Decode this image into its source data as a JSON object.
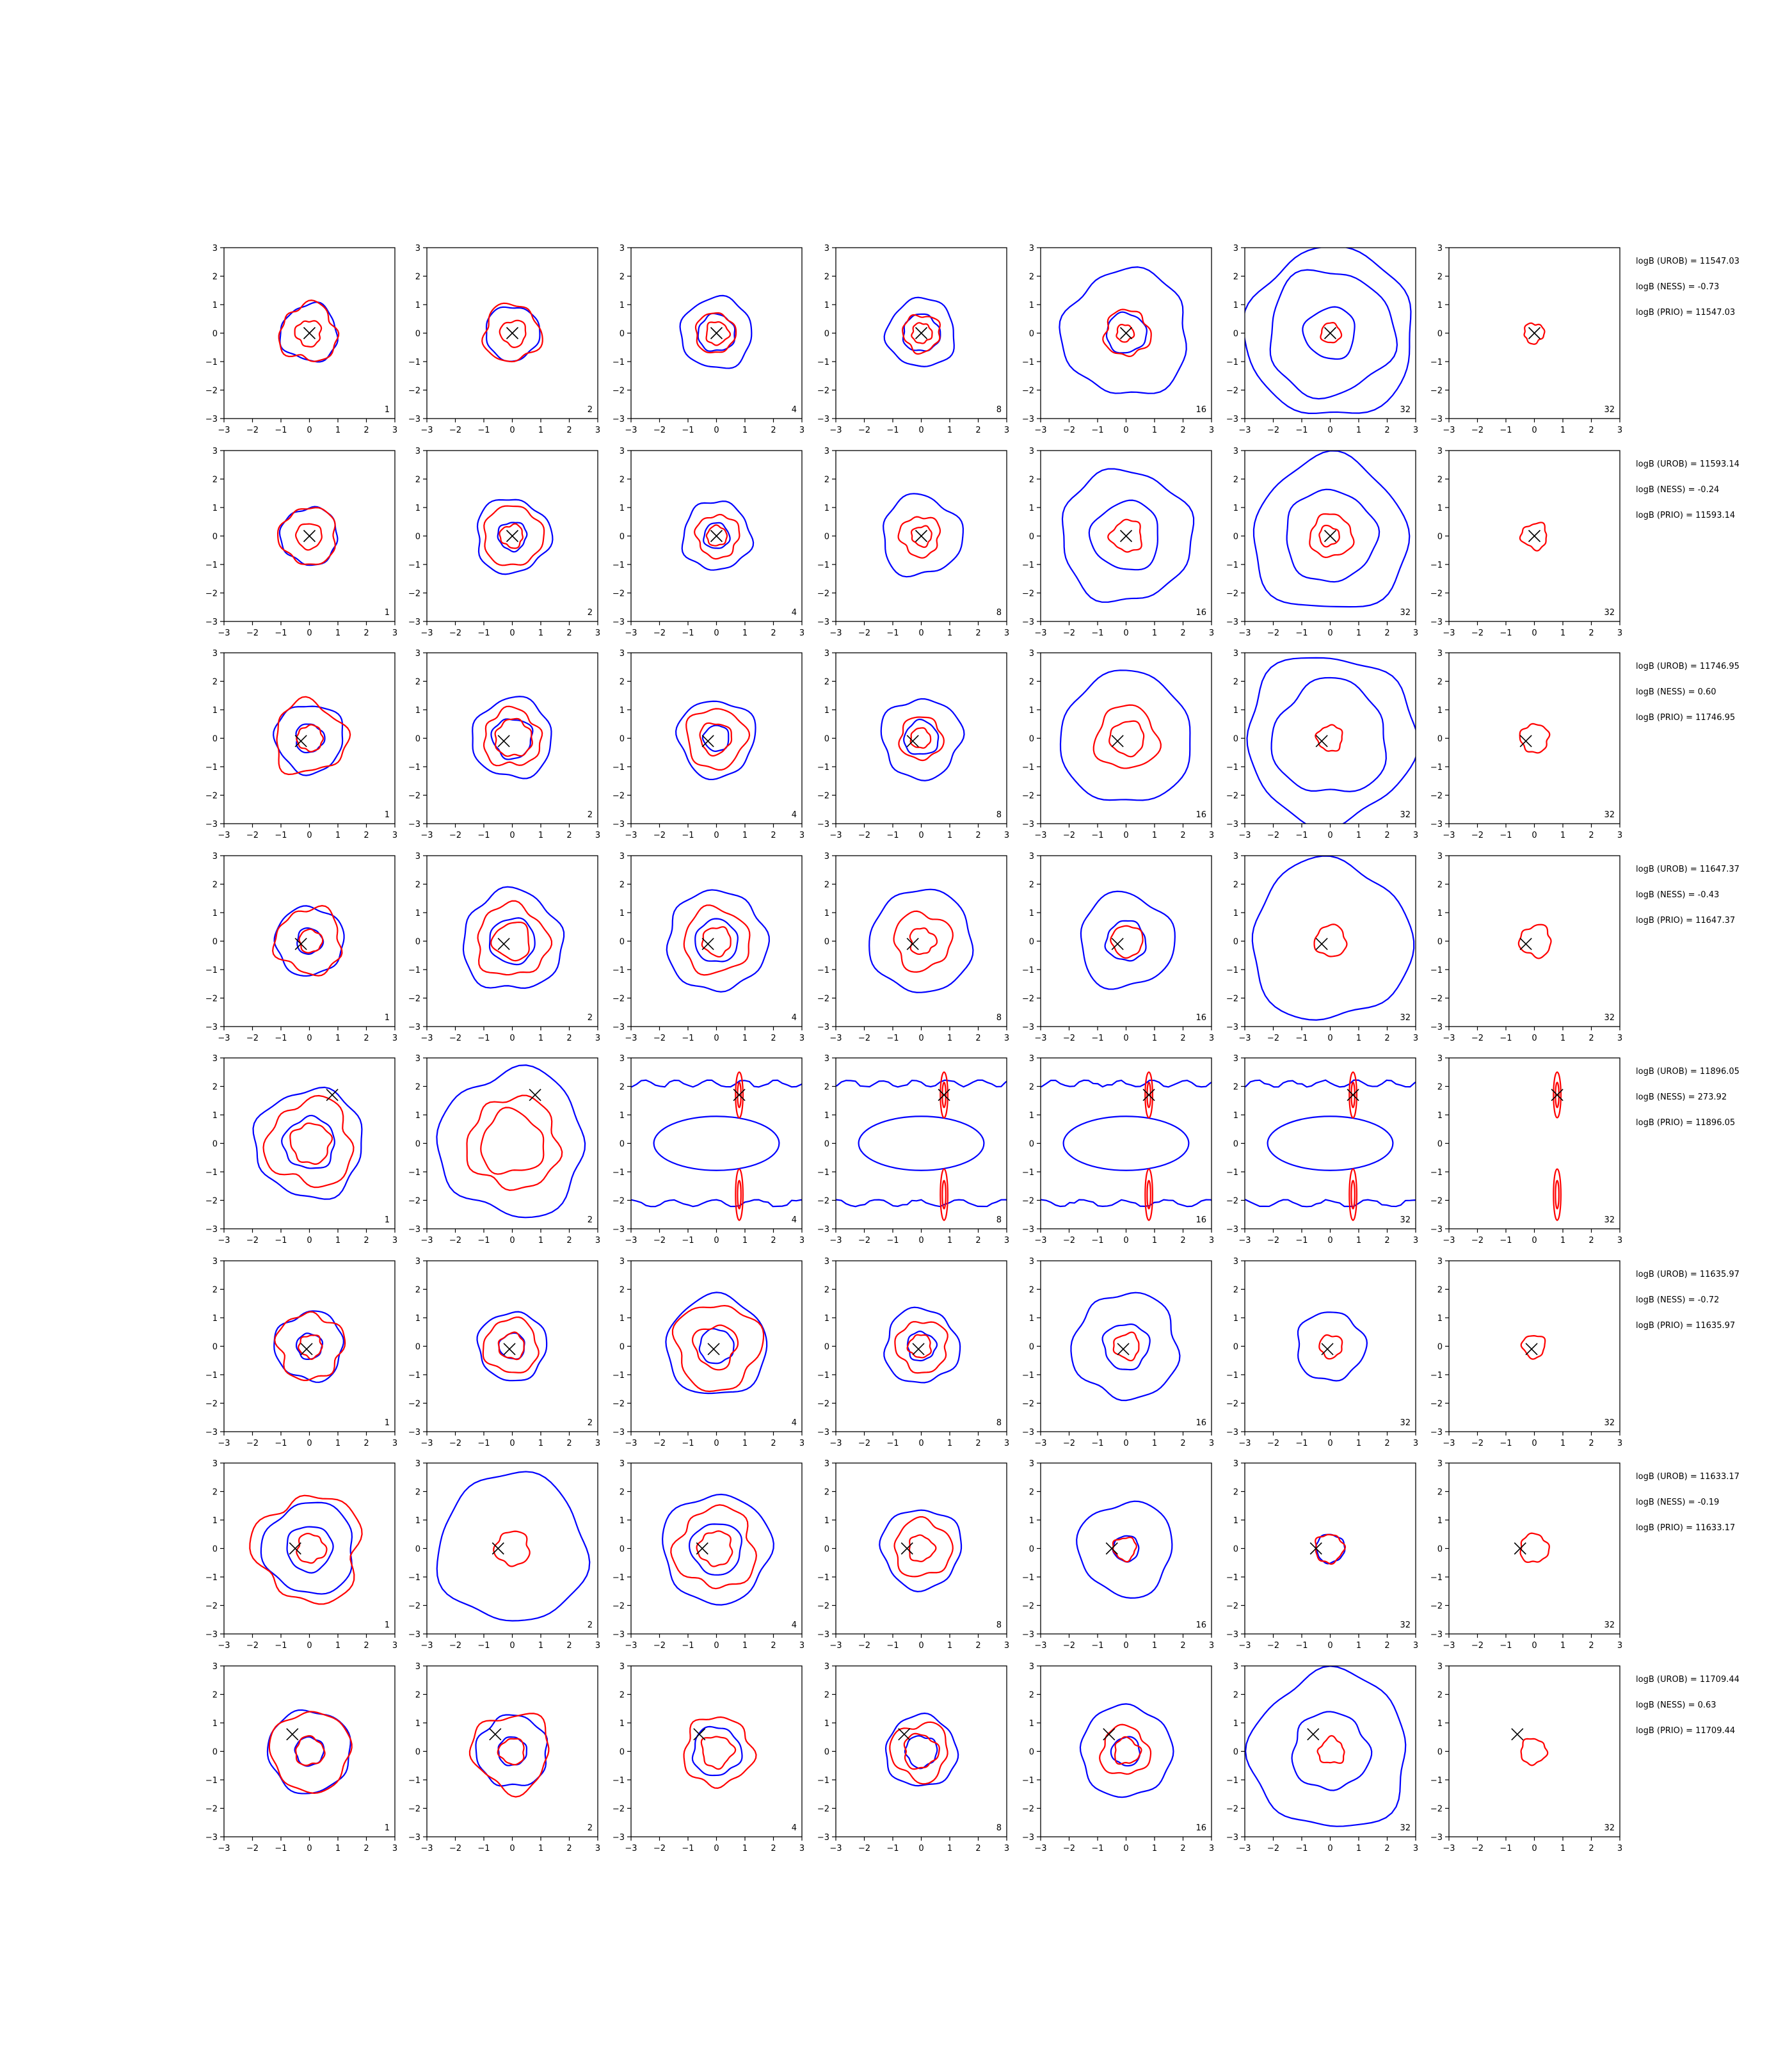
{
  "figure": {
    "colors": {
      "blue": "#0000ff",
      "red": "#ff0000",
      "marker": "#000000",
      "axes": "#000000"
    }
  },
  "chart_data": {
    "type": "contour-grid",
    "x_ticks": [
      "−3",
      "−2",
      "−1",
      "0",
      "1",
      "2",
      "3"
    ],
    "y_ticks": [
      "3",
      "2",
      "1",
      "0",
      "−1",
      "−2",
      "−3"
    ],
    "xlim": [
      -3,
      3
    ],
    "ylim": [
      -3,
      3
    ],
    "column_labels": [
      "1",
      "2",
      "4",
      "8",
      "16",
      "32",
      "32"
    ],
    "rows": [
      {
        "marker": [
          0.0,
          0.0
        ],
        "stats": [
          "logB (UROB) = 11547.03",
          "logB (NESS) = -0.73",
          "logB (PRIO) = 11547.03"
        ],
        "blue_r": [
          [
            1.0
          ],
          [
            0.95
          ],
          [
            0.65,
            1.25
          ],
          [
            0.65,
            1.2
          ],
          [
            0.7,
            2.2
          ],
          [
            0.9,
            2.2,
            2.95
          ],
          []
        ],
        "red_r": [
          [
            0.45,
            1.0
          ],
          [
            0.45,
            1.0
          ],
          [
            0.4,
            0.7
          ],
          [
            0.35,
            0.65
          ],
          [
            0.3,
            0.8
          ],
          [
            0.35
          ],
          [
            0.35
          ]
        ]
      },
      {
        "marker": [
          0.0,
          0.0
        ],
        "stats": [
          "logB (UROB) = 11593.14",
          "logB (NESS) = -0.24",
          "logB (PRIO) = 11593.14"
        ],
        "blue_r": [
          [
            1.0
          ],
          [
            0.5,
            1.3
          ],
          [
            0.45,
            1.2
          ],
          [
            1.4
          ],
          [
            1.2,
            2.3
          ],
          [
            1.6,
            2.7
          ],
          []
        ],
        "red_r": [
          [
            0.45,
            1.0
          ],
          [
            0.4,
            1.05
          ],
          [
            0.35,
            0.75
          ],
          [
            0.35,
            0.7
          ],
          [
            0.55
          ],
          [
            0.35,
            0.75
          ],
          [
            0.45
          ]
        ]
      },
      {
        "marker": [
          -0.3,
          -0.1
        ],
        "stats": [
          "logB (UROB) = 11746.95",
          "logB (NESS) = 0.60",
          "logB (PRIO) = 11746.95"
        ],
        "blue_r": [
          [
            0.5,
            1.2
          ],
          [
            0.7,
            1.4
          ],
          [
            0.45,
            1.35
          ],
          [
            0.6,
            1.4
          ],
          [
            2.3
          ],
          [
            2.0,
            2.95
          ],
          []
        ],
        "red_r": [
          [
            0.45,
            1.25
          ],
          [
            0.65,
            1.0
          ],
          [
            0.55,
            1.05
          ],
          [
            0.35,
            0.75
          ],
          [
            0.6,
            1.1
          ],
          [
            0.45
          ],
          [
            0.5
          ]
        ]
      },
      {
        "marker": [
          -0.3,
          -0.1
        ],
        "stats": [
          "logB (UROB) = 11647.37",
          "logB (NESS) = -0.43",
          "logB (PRIO) = 11647.37"
        ],
        "blue_r": [
          [
            0.45,
            1.2
          ],
          [
            0.8,
            1.75
          ],
          [
            0.75,
            1.75
          ],
          [
            1.8
          ],
          [
            0.7,
            1.65
          ],
          [
            2.8
          ],
          []
        ],
        "red_r": [
          [
            0.4,
            1.15
          ],
          [
            0.65,
            1.25
          ],
          [
            0.5,
            1.15
          ],
          [
            0.45,
            1.0
          ],
          [
            0.55
          ],
          [
            0.55
          ],
          [
            0.55
          ]
        ]
      },
      {
        "marker": [
          0.8,
          1.7
        ],
        "stats": [
          "logB (UROB) = 11896.05",
          "logB (NESS) = 273.92",
          "logB (PRIO) = 11896.05"
        ],
        "blue_r": [
          [
            0.9,
            1.9
          ],
          [
            2.55
          ],
          [],
          [],
          [],
          [],
          []
        ],
        "red_r": [
          [
            0.7,
            1.5
          ],
          [
            1.1,
            1.6
          ],
          [],
          [],
          [],
          [],
          []
        ]
      },
      {
        "marker": [
          -0.1,
          -0.1
        ],
        "stats": [
          "logB (UROB) = 11635.97",
          "logB (NESS) = -0.72",
          "logB (PRIO) = 11635.97"
        ],
        "blue_r": [
          [
            0.45,
            1.2
          ],
          [
            0.45,
            1.2
          ],
          [
            0.6,
            1.75
          ],
          [
            0.5,
            1.3
          ],
          [
            0.8,
            1.85
          ],
          [
            1.2
          ],
          []
        ],
        "red_r": [
          [
            0.4,
            1.15
          ],
          [
            0.45,
            0.95
          ],
          [
            0.75,
            1.5
          ],
          [
            0.4,
            0.9
          ],
          [
            0.45
          ],
          [
            0.4
          ],
          [
            0.4
          ]
        ]
      },
      {
        "marker": [
          -0.5,
          0.0
        ],
        "stats": [
          "logB (UROB) = 11633.17",
          "logB (NESS) = -0.19",
          "logB (PRIO) = 11633.17"
        ],
        "blue_r": [
          [
            0.8,
            1.6
          ],
          [
            2.6
          ],
          [
            0.9,
            1.9
          ],
          [
            1.4
          ],
          [
            0.45,
            1.65
          ],
          [
            0.5
          ],
          []
        ],
        "red_r": [
          [
            0.5,
            1.85
          ],
          [
            0.6
          ],
          [
            0.6,
            1.4
          ],
          [
            0.45,
            1.0
          ],
          [
            0.4
          ],
          [
            0.5
          ],
          [
            0.5
          ]
        ]
      },
      {
        "marker": [
          -0.6,
          0.6
        ],
        "stats": [
          "logB (UROB) = 11709.44",
          "logB (NESS) = 0.63",
          "logB (PRIO) = 11709.44"
        ],
        "blue_r": [
          [
            0.5,
            1.45
          ],
          [
            0.5,
            1.25
          ],
          [
            0.85
          ],
          [
            0.55,
            1.25
          ],
          [
            0.5,
            1.6
          ],
          [
            1.35,
            2.75
          ],
          []
        ],
        "red_r": [
          [
            0.5,
            1.4
          ],
          [
            0.45,
            1.35
          ],
          [
            0.55,
            1.2
          ],
          [
            0.6,
            1.0
          ],
          [
            0.45,
            0.85
          ],
          [
            0.45
          ],
          [
            0.45
          ]
        ]
      }
    ]
  }
}
